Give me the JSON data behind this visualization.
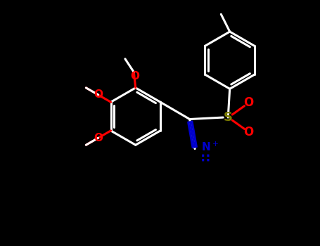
{
  "bg_color": "#000000",
  "line_color": "#ffffff",
  "o_color": "#ff0000",
  "s_color": "#808000",
  "n_color": "#0000cd",
  "lw": 2.2,
  "figsize": [
    4.55,
    3.5
  ],
  "dpi": 100,
  "xlim": [
    -4.5,
    4.5
  ],
  "ylim": [
    -3.2,
    3.8
  ]
}
